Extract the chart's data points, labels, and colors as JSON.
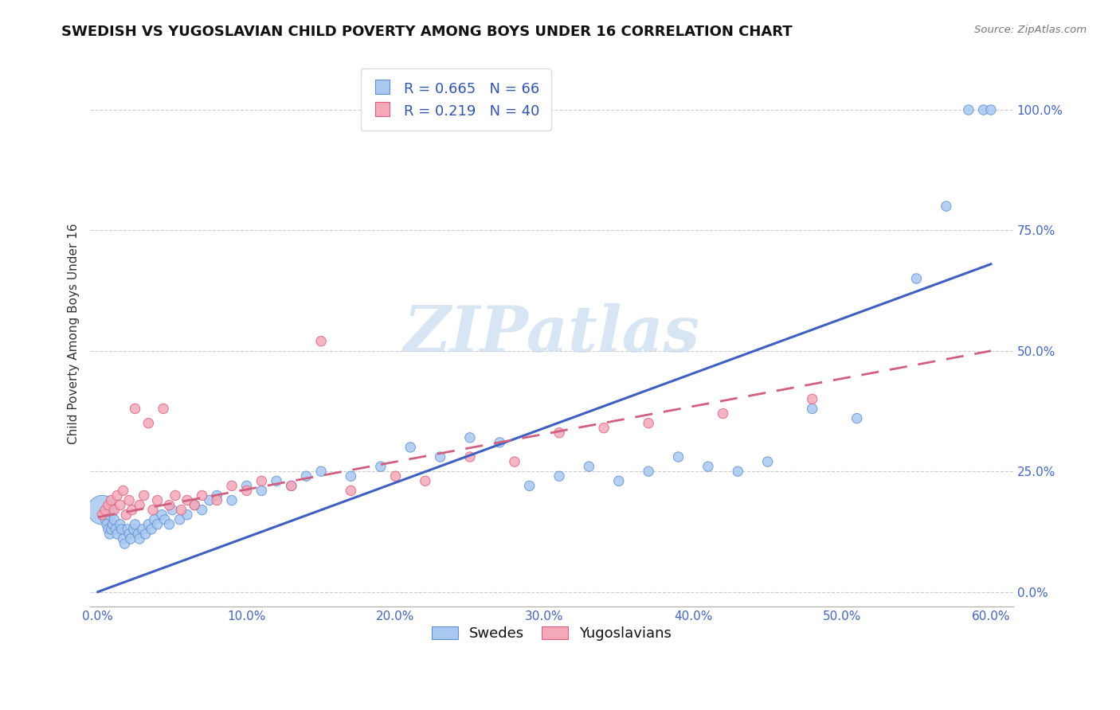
{
  "title": "SWEDISH VS YUGOSLAVIAN CHILD POVERTY AMONG BOYS UNDER 16 CORRELATION CHART",
  "source": "Source: ZipAtlas.com",
  "ylabel": "Child Poverty Among Boys Under 16",
  "legend_swedes": "Swedes",
  "legend_yugoslavians": "Yugoslavians",
  "R_swedes": 0.665,
  "N_swedes": 66,
  "R_yugo": 0.219,
  "N_yugo": 40,
  "color_swedes": "#A8C8F0",
  "color_yugo": "#F4A8B8",
  "color_edge_swedes": "#6090D0",
  "color_edge_yugo": "#D86080",
  "color_line_swedes": "#4060C0",
  "color_line_yugo": "#D06080",
  "watermark_color": "#C8DCF0",
  "swedes_x": [
    0.003,
    0.005,
    0.006,
    0.007,
    0.008,
    0.009,
    0.01,
    0.011,
    0.012,
    0.013,
    0.015,
    0.016,
    0.017,
    0.018,
    0.02,
    0.021,
    0.022,
    0.024,
    0.025,
    0.027,
    0.028,
    0.03,
    0.032,
    0.034,
    0.036,
    0.038,
    0.04,
    0.043,
    0.045,
    0.048,
    0.05,
    0.055,
    0.06,
    0.065,
    0.07,
    0.075,
    0.08,
    0.09,
    0.1,
    0.11,
    0.12,
    0.13,
    0.14,
    0.15,
    0.17,
    0.19,
    0.21,
    0.23,
    0.25,
    0.27,
    0.29,
    0.31,
    0.33,
    0.35,
    0.37,
    0.39,
    0.41,
    0.43,
    0.45,
    0.48,
    0.51,
    0.55,
    0.57,
    0.585,
    0.595,
    0.6
  ],
  "swedes_y": [
    0.17,
    0.15,
    0.14,
    0.13,
    0.12,
    0.13,
    0.14,
    0.15,
    0.13,
    0.12,
    0.14,
    0.13,
    0.11,
    0.1,
    0.13,
    0.12,
    0.11,
    0.13,
    0.14,
    0.12,
    0.11,
    0.13,
    0.12,
    0.14,
    0.13,
    0.15,
    0.14,
    0.16,
    0.15,
    0.14,
    0.17,
    0.15,
    0.16,
    0.18,
    0.17,
    0.19,
    0.2,
    0.19,
    0.22,
    0.21,
    0.23,
    0.22,
    0.24,
    0.25,
    0.24,
    0.26,
    0.3,
    0.28,
    0.32,
    0.31,
    0.22,
    0.24,
    0.26,
    0.23,
    0.25,
    0.28,
    0.26,
    0.25,
    0.27,
    0.38,
    0.36,
    0.65,
    0.8,
    1.0,
    1.0,
    1.0
  ],
  "swedes_size": [
    700,
    80,
    80,
    80,
    80,
    80,
    80,
    80,
    80,
    80,
    80,
    80,
    80,
    80,
    80,
    80,
    80,
    80,
    80,
    80,
    80,
    80,
    80,
    80,
    80,
    80,
    80,
    80,
    80,
    80,
    80,
    80,
    80,
    80,
    80,
    80,
    80,
    80,
    80,
    80,
    80,
    80,
    80,
    80,
    80,
    80,
    80,
    80,
    80,
    80,
    80,
    80,
    80,
    80,
    80,
    80,
    80,
    80,
    80,
    80,
    80,
    80,
    80,
    80,
    80,
    80
  ],
  "yugo_x": [
    0.003,
    0.005,
    0.007,
    0.009,
    0.011,
    0.013,
    0.015,
    0.017,
    0.019,
    0.021,
    0.023,
    0.025,
    0.028,
    0.031,
    0.034,
    0.037,
    0.04,
    0.044,
    0.048,
    0.052,
    0.056,
    0.06,
    0.065,
    0.07,
    0.08,
    0.09,
    0.1,
    0.11,
    0.13,
    0.15,
    0.17,
    0.2,
    0.22,
    0.25,
    0.28,
    0.31,
    0.34,
    0.37,
    0.42,
    0.48
  ],
  "yugo_y": [
    0.16,
    0.17,
    0.18,
    0.19,
    0.17,
    0.2,
    0.18,
    0.21,
    0.16,
    0.19,
    0.17,
    0.38,
    0.18,
    0.2,
    0.35,
    0.17,
    0.19,
    0.38,
    0.18,
    0.2,
    0.17,
    0.19,
    0.18,
    0.2,
    0.19,
    0.22,
    0.21,
    0.23,
    0.22,
    0.52,
    0.21,
    0.24,
    0.23,
    0.28,
    0.27,
    0.33,
    0.34,
    0.35,
    0.37,
    0.4
  ],
  "yugo_size": [
    80,
    80,
    80,
    80,
    80,
    80,
    80,
    80,
    80,
    80,
    80,
    80,
    80,
    80,
    80,
    80,
    80,
    80,
    80,
    80,
    80,
    80,
    80,
    80,
    80,
    80,
    80,
    80,
    80,
    80,
    80,
    80,
    80,
    80,
    80,
    80,
    80,
    80,
    80,
    80
  ],
  "sw_line_x0": 0.0,
  "sw_line_y0": 0.0,
  "sw_line_x1": 0.6,
  "sw_line_y1": 0.68,
  "yu_line_x0": 0.0,
  "yu_line_y0": 0.155,
  "yu_line_x1": 0.6,
  "yu_line_y1": 0.5,
  "xlim_min": -0.005,
  "xlim_max": 0.615,
  "ylim_min": -0.03,
  "ylim_max": 1.1,
  "x_ticks": [
    0.0,
    0.1,
    0.2,
    0.3,
    0.4,
    0.5,
    0.6
  ],
  "y_ticks": [
    0.0,
    0.25,
    0.5,
    0.75,
    1.0
  ],
  "grid_color": "#CCCCCC",
  "title_fontsize": 13,
  "tick_fontsize": 11,
  "legend_fontsize": 13,
  "ylabel_fontsize": 11
}
